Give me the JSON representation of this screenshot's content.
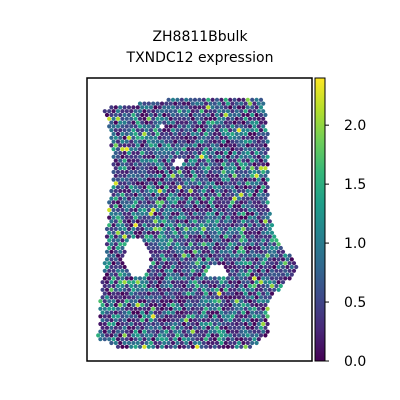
{
  "chart_data": {
    "type": "heatmap",
    "subtype": "spatial-hexbin",
    "title_line1": "ZH8811Bbulk",
    "title_line2": "TXNDC12 expression",
    "xlabel": "",
    "ylabel": "",
    "colormap": "viridis",
    "colorbar": {
      "range": [
        0.0,
        2.4
      ],
      "ticks": [
        0.0,
        0.5,
        1.0,
        1.5,
        2.0
      ],
      "tick_labels": [
        "0.0",
        "0.5",
        "1.0",
        "1.5",
        "2.0"
      ]
    },
    "grid": false,
    "legend": "colorbar-right",
    "spots": {
      "value_range": [
        0.0,
        2.4
      ],
      "typical_value": 0.7,
      "description_values": "mostly low-to-mid expression with sparse bright spots up to ~2.3"
    }
  },
  "colors": {
    "axes_edge": "#000000",
    "background": "#ffffff",
    "viridis_stops": [
      "#440154",
      "#482878",
      "#3e4989",
      "#31688e",
      "#26828e",
      "#1f9e89",
      "#35b779",
      "#6ece58",
      "#b5de2b",
      "#fde725"
    ]
  }
}
